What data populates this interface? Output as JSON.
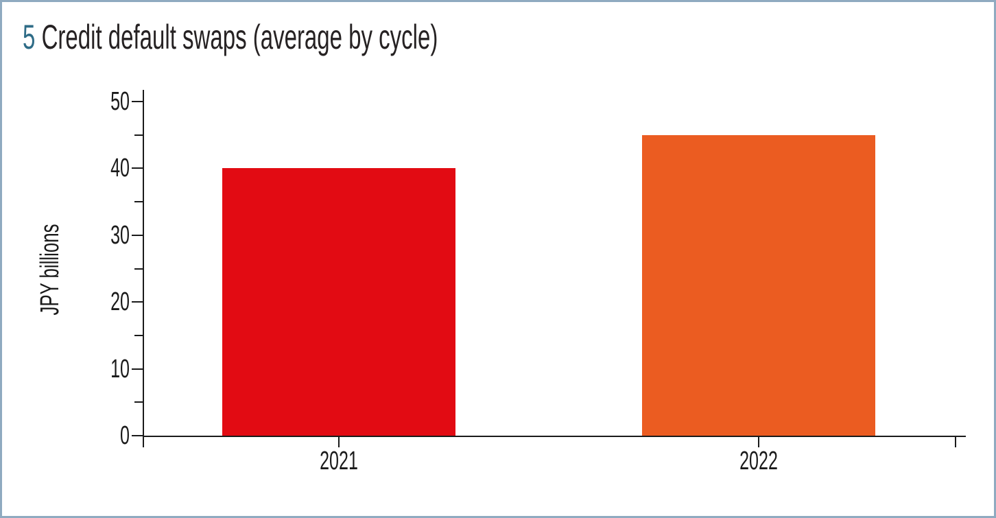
{
  "panel": {
    "number": "5",
    "title": "Credit default swaps (average by cycle)",
    "number_color": "#2F6C87",
    "border_color": "#8FAAC0",
    "text_color": "#262223"
  },
  "chart_data": {
    "type": "bar",
    "title": "5 Credit default swaps (average by cycle)",
    "categories": [
      "2021",
      "2022"
    ],
    "values": [
      40,
      45
    ],
    "bar_colors": [
      "#E20B13",
      "#EB5C21"
    ],
    "xlabel": "",
    "ylabel": "JPY billions",
    "ylim": [
      0,
      50
    ],
    "yticks": [
      0,
      10,
      20,
      30,
      40,
      50
    ],
    "ytick_major_step": 10,
    "ytick_minor_step": 5,
    "grid": false,
    "legend_position": "none",
    "axis_color": "#1a1a1a"
  }
}
